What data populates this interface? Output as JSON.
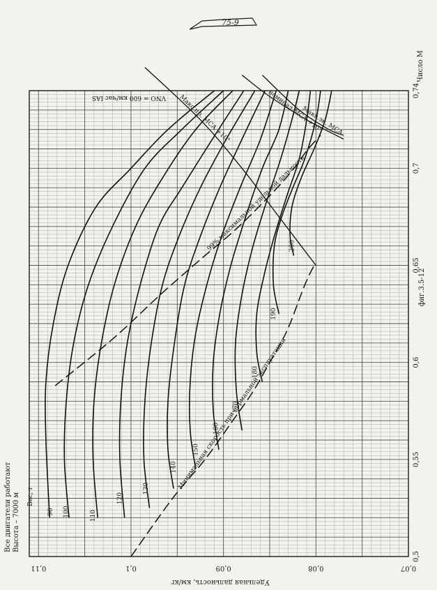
{
  "header_stamp": "75-9",
  "figure_label": "фиг.3.5-12",
  "chart_data": {
    "type": "line",
    "title": "",
    "subtitle": "",
    "conditions": [
      "Все двигатели работают",
      "Высота – 7000 м"
    ],
    "xlabel": "Удельная дальность, км/кг",
    "ylabel": "Число М",
    "x_ticks": [
      "0,11",
      "0,1",
      "0,09",
      "0,08",
      "0,07"
    ],
    "x_tick_values": [
      0.11,
      0.1,
      0.09,
      0.08,
      0.07
    ],
    "y_ticks": [
      "0,5",
      "0,55",
      "0,6",
      "0,65",
      "0,7",
      "0,74"
    ],
    "y_tick_values": [
      0.5,
      0.55,
      0.6,
      0.65,
      0.7,
      0.74
    ],
    "xlim": [
      0.111,
      0.07
    ],
    "ylim": [
      0.5,
      0.74
    ],
    "weight_label": "Вес, т",
    "grid": true,
    "speed_note": "VNO = 600 км/час IAS",
    "series": [
      {
        "name": "90",
        "label_at": [
          0.1085,
          0.523
        ],
        "x": [
          0.1088,
          0.1092,
          0.1092,
          0.1084,
          0.1068,
          0.1038,
          0.1,
          0.096,
          0.091
        ],
        "y": [
          0.52,
          0.56,
          0.59,
          0.62,
          0.65,
          0.68,
          0.7,
          0.72,
          0.74
        ]
      },
      {
        "name": "100",
        "label_at": [
          0.1068,
          0.523
        ],
        "x": [
          0.1067,
          0.1072,
          0.107,
          0.1062,
          0.1046,
          0.102,
          0.0985,
          0.0945,
          0.09
        ],
        "y": [
          0.52,
          0.55,
          0.58,
          0.61,
          0.64,
          0.67,
          0.7,
          0.72,
          0.74
        ]
      },
      {
        "name": "110",
        "label_at": [
          0.1039,
          0.521
        ],
        "x": [
          0.1036,
          0.1041,
          0.104,
          0.1032,
          0.1018,
          0.0995,
          0.0966,
          0.093,
          0.089
        ],
        "y": [
          0.52,
          0.55,
          0.58,
          0.61,
          0.64,
          0.67,
          0.695,
          0.72,
          0.74
        ]
      },
      {
        "name": "120",
        "label_at": [
          0.101,
          0.53
        ],
        "x": [
          0.1007,
          0.1012,
          0.1011,
          0.1004,
          0.099,
          0.097,
          0.0945,
          0.0912,
          0.0878
        ],
        "y": [
          0.52,
          0.55,
          0.58,
          0.61,
          0.64,
          0.67,
          0.69,
          0.715,
          0.74
        ]
      },
      {
        "name": "130",
        "label_at": [
          0.0982,
          0.535
        ],
        "x": [
          0.098,
          0.0986,
          0.0985,
          0.0978,
          0.0966,
          0.0948,
          0.0925,
          0.0897,
          0.0866
        ],
        "y": [
          0.525,
          0.55,
          0.58,
          0.61,
          0.64,
          0.665,
          0.69,
          0.715,
          0.74
        ]
      },
      {
        "name": "140",
        "label_at": [
          0.0952,
          0.546
        ],
        "x": [
          0.0954,
          0.096,
          0.096,
          0.0953,
          0.0942,
          0.0925,
          0.0904,
          0.088,
          0.0855
        ],
        "y": [
          0.535,
          0.555,
          0.58,
          0.61,
          0.64,
          0.665,
          0.69,
          0.715,
          0.74
        ]
      },
      {
        "name": "150",
        "label_at": [
          0.0928,
          0.555
        ],
        "x": [
          0.093,
          0.0936,
          0.0936,
          0.093,
          0.0918,
          0.0902,
          0.0882,
          0.086,
          0.0843
        ],
        "y": [
          0.545,
          0.565,
          0.59,
          0.615,
          0.64,
          0.665,
          0.69,
          0.715,
          0.74
        ]
      },
      {
        "name": "160",
        "label_at": [
          0.0906,
          0.566
        ],
        "x": [
          0.0905,
          0.0911,
          0.0911,
          0.0904,
          0.0892,
          0.0876,
          0.0858,
          0.084,
          0.083
        ],
        "y": [
          0.555,
          0.575,
          0.6,
          0.625,
          0.65,
          0.675,
          0.7,
          0.72,
          0.74
        ]
      },
      {
        "name": "170",
        "label_at": [
          0.0885,
          0.577
        ],
        "x": [
          0.088,
          0.0886,
          0.0887,
          0.088,
          0.0868,
          0.0852,
          0.0838,
          0.0826,
          0.0818
        ],
        "y": [
          0.565,
          0.585,
          0.61,
          0.635,
          0.66,
          0.685,
          0.705,
          0.725,
          0.74
        ]
      },
      {
        "name": "180",
        "label_at": [
          0.0864,
          0.595
        ],
        "x": [
          0.0858,
          0.0864,
          0.0864,
          0.0856,
          0.0845,
          0.0832,
          0.0818,
          0.081,
          0.0806
        ],
        "y": [
          0.59,
          0.605,
          0.625,
          0.645,
          0.665,
          0.685,
          0.705,
          0.725,
          0.74
        ]
      },
      {
        "name": "190",
        "label_at": [
          0.0844,
          0.625
        ],
        "x": [
          0.084,
          0.0846,
          0.0845,
          0.0837,
          0.0825,
          0.0812,
          0.08,
          0.0795
        ],
        "y": [
          0.625,
          0.64,
          0.66,
          0.675,
          0.69,
          0.705,
          0.725,
          0.74
        ]
      },
      {
        "name": "200",
        "label_at": [
          0.0824,
          0.66
        ],
        "x": [
          0.0824,
          0.0828,
          0.0826,
          0.0816,
          0.0802,
          0.079,
          0.0783
        ],
        "y": [
          0.655,
          0.665,
          0.68,
          0.695,
          0.71,
          0.725,
          0.74
        ]
      }
    ],
    "boundaries": [
      {
        "name": "99% максимальной удельной дальности",
        "x": [
          0.1082,
          0.102,
          0.0968,
          0.0925,
          0.0888,
          0.086,
          0.0838,
          0.0822,
          0.081,
          0.0795
        ],
        "y": [
          0.588,
          0.612,
          0.635,
          0.653,
          0.668,
          0.681,
          0.692,
          0.701,
          0.709,
          0.717
        ]
      },
      {
        "name": "Минимальная скорость при нормальной эксплуатации",
        "x": [
          0.1,
          0.0955,
          0.092,
          0.089,
          0.0868,
          0.085,
          0.0838,
          0.0828,
          0.0812,
          0.0802
        ],
        "y": [
          0.5,
          0.53,
          0.55,
          0.57,
          0.585,
          0.6,
          0.61,
          0.62,
          0.64,
          0.65
        ]
      },
      {
        "name": "Макс.эк. МСА",
        "x": [
          0.077,
          0.0786,
          0.0818,
          0.0858
        ],
        "y": [
          0.717,
          0.72,
          0.73,
          0.748
        ]
      },
      {
        "name": "номинал МСА +10°",
        "x": [
          0.077,
          0.081,
          0.085,
          0.088
        ],
        "y": [
          0.715,
          0.725,
          0.737,
          0.748
        ]
      },
      {
        "name": "Макс.пр. МСА +10°",
        "x": [
          0.08,
          0.084,
          0.088,
          0.0925,
          0.0985
        ],
        "y": [
          0.65,
          0.675,
          0.7,
          0.725,
          0.752
        ]
      }
    ]
  }
}
